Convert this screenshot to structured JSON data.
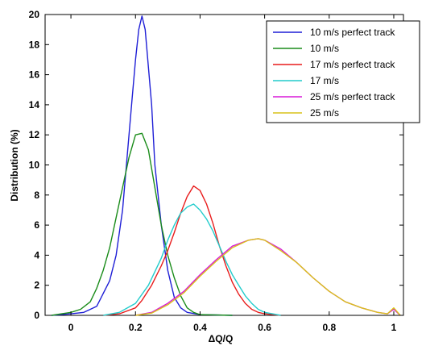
{
  "chart_data": {
    "type": "line",
    "xlabel": "ΔQ/Q",
    "ylabel": "Distribution (%)",
    "xlim": [
      -0.08,
      1.03
    ],
    "ylim": [
      0,
      20
    ],
    "xticks": [
      0,
      0.2,
      0.4,
      0.6,
      0.8,
      1
    ],
    "xtick_labels": [
      "0",
      "0.2",
      "0.4",
      "0.6",
      "0.8",
      "1"
    ],
    "yticks": [
      0,
      2,
      4,
      6,
      8,
      10,
      12,
      14,
      16,
      18,
      20
    ],
    "ytick_labels": [
      "0",
      "2",
      "4",
      "6",
      "8",
      "10",
      "12",
      "14",
      "16",
      "18",
      "20"
    ],
    "grid": false,
    "legend_position": "top-right",
    "series": [
      {
        "name": "10 m/s perfect track",
        "color": "#1f1fd6",
        "x": [
          -0.06,
          0.0,
          0.04,
          0.08,
          0.12,
          0.14,
          0.16,
          0.18,
          0.19,
          0.2,
          0.21,
          0.22,
          0.23,
          0.24,
          0.25,
          0.26,
          0.28,
          0.3,
          0.32,
          0.34,
          0.36,
          0.4,
          0.5
        ],
        "y": [
          0,
          0.1,
          0.2,
          0.6,
          2.3,
          4.0,
          7.0,
          12.0,
          14.5,
          17.0,
          19.0,
          19.9,
          19.0,
          16.5,
          14.0,
          10.0,
          6.0,
          3.0,
          1.2,
          0.5,
          0.2,
          0.05,
          0
        ]
      },
      {
        "name": "10 m/s",
        "color": "#1a8c1a",
        "x": [
          -0.06,
          0.0,
          0.03,
          0.06,
          0.08,
          0.1,
          0.12,
          0.14,
          0.16,
          0.18,
          0.2,
          0.22,
          0.24,
          0.26,
          0.28,
          0.3,
          0.32,
          0.34,
          0.36,
          0.38,
          0.4,
          0.5
        ],
        "y": [
          0,
          0.2,
          0.4,
          0.9,
          1.8,
          3.0,
          4.5,
          6.5,
          8.5,
          10.5,
          12.0,
          12.1,
          11.0,
          8.5,
          6.0,
          4.0,
          2.5,
          1.3,
          0.5,
          0.2,
          0.05,
          0
        ]
      },
      {
        "name": "17 m/s perfect track",
        "color": "#e81c1c",
        "x": [
          0.1,
          0.15,
          0.2,
          0.22,
          0.25,
          0.28,
          0.3,
          0.32,
          0.34,
          0.36,
          0.38,
          0.4,
          0.42,
          0.44,
          0.46,
          0.48,
          0.5,
          0.52,
          0.54,
          0.56,
          0.58,
          0.6,
          0.65
        ],
        "y": [
          0,
          0.1,
          0.5,
          1.0,
          2.0,
          3.3,
          4.3,
          5.5,
          6.8,
          7.9,
          8.6,
          8.3,
          7.4,
          6.1,
          4.6,
          3.3,
          2.2,
          1.4,
          0.8,
          0.4,
          0.2,
          0.1,
          0
        ]
      },
      {
        "name": "17 m/s",
        "color": "#22cccc",
        "x": [
          0.1,
          0.15,
          0.2,
          0.24,
          0.28,
          0.3,
          0.32,
          0.34,
          0.36,
          0.38,
          0.4,
          0.42,
          0.44,
          0.46,
          0.48,
          0.5,
          0.52,
          0.54,
          0.56,
          0.58,
          0.6,
          0.65
        ],
        "y": [
          0,
          0.2,
          0.8,
          2.0,
          3.8,
          5.0,
          6.0,
          6.8,
          7.2,
          7.4,
          7.0,
          6.4,
          5.6,
          4.6,
          3.6,
          2.7,
          2.0,
          1.3,
          0.8,
          0.4,
          0.2,
          0
        ]
      },
      {
        "name": "25 m/s perfect track",
        "color": "#d81ad8",
        "x": [
          0.2,
          0.25,
          0.3,
          0.35,
          0.4,
          0.45,
          0.5,
          0.55,
          0.58,
          0.6,
          0.65,
          0.7,
          0.75,
          0.8,
          0.85,
          0.9,
          0.95,
          0.98,
          1.0,
          1.02
        ],
        "y": [
          0,
          0.2,
          0.8,
          1.6,
          2.7,
          3.7,
          4.6,
          5.0,
          5.1,
          5.0,
          4.4,
          3.5,
          2.5,
          1.6,
          0.9,
          0.5,
          0.2,
          0.1,
          0.4,
          0
        ]
      },
      {
        "name": "25 m/s",
        "color": "#d8c21a",
        "x": [
          0.2,
          0.25,
          0.3,
          0.35,
          0.4,
          0.45,
          0.5,
          0.55,
          0.58,
          0.6,
          0.65,
          0.7,
          0.75,
          0.8,
          0.85,
          0.9,
          0.95,
          0.98,
          1.0,
          1.02
        ],
        "y": [
          0,
          0.15,
          0.7,
          1.5,
          2.6,
          3.6,
          4.5,
          5.0,
          5.1,
          5.0,
          4.3,
          3.5,
          2.5,
          1.6,
          0.9,
          0.5,
          0.2,
          0.1,
          0.5,
          0
        ]
      }
    ]
  }
}
